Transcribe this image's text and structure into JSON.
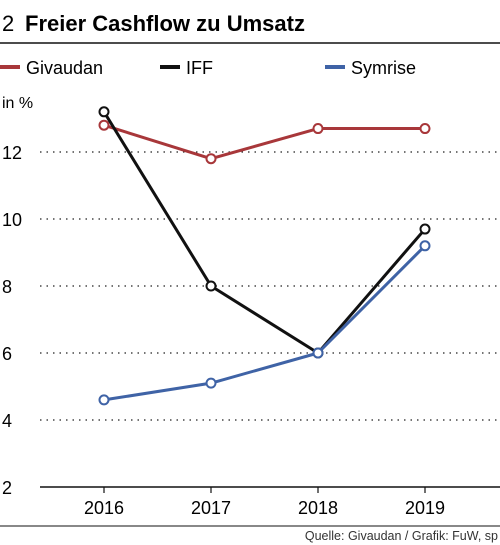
{
  "figure_number": "2",
  "chart_data": {
    "type": "line",
    "title": "Freier Cashflow zu Umsatz",
    "ylabel": "in %",
    "xlabel": "",
    "categories": [
      "2016",
      "2017",
      "2018",
      "2019"
    ],
    "ylim": [
      2,
      14
    ],
    "yticks": [
      2,
      4,
      6,
      8,
      10,
      12
    ],
    "grid": "horizontal dotted",
    "legend_position": "top",
    "series": [
      {
        "name": "Givaudan",
        "color": "#a8373a",
        "values": [
          12.8,
          11.8,
          12.7,
          12.7
        ]
      },
      {
        "name": "IFF",
        "color": "#111111",
        "values": [
          13.2,
          8.0,
          6.0,
          9.7
        ]
      },
      {
        "name": "Symrise",
        "color": "#3f63a6",
        "values": [
          4.6,
          5.1,
          6.0,
          9.2
        ]
      }
    ]
  },
  "source": "Quelle: Givaudan / Grafik: FuW, sp"
}
